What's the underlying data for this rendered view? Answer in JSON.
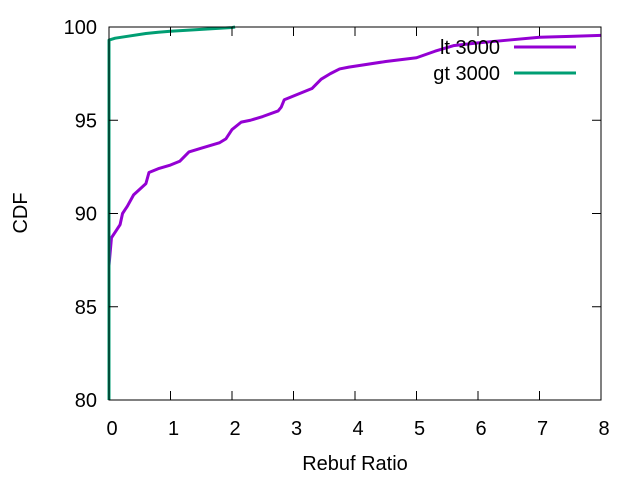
{
  "chart_data": {
    "type": "line",
    "title": "",
    "xlabel": "Rebuf Ratio",
    "ylabel": "CDF",
    "xlim": [
      0,
      8
    ],
    "ylim": [
      80,
      100
    ],
    "xticks": [
      0,
      1,
      2,
      3,
      4,
      5,
      6,
      7,
      8
    ],
    "yticks": [
      80,
      85,
      90,
      95,
      100
    ],
    "grid": false,
    "legend_position": "top-right",
    "series": [
      {
        "name": "lt 3000",
        "color": "#9400d3",
        "points": [
          [
            0,
            80
          ],
          [
            0,
            87.2
          ],
          [
            0.04,
            88.7
          ],
          [
            0.1,
            89.0
          ],
          [
            0.18,
            89.4
          ],
          [
            0.22,
            90.0
          ],
          [
            0.3,
            90.4
          ],
          [
            0.4,
            91.0
          ],
          [
            0.5,
            91.3
          ],
          [
            0.6,
            91.6
          ],
          [
            0.65,
            92.2
          ],
          [
            0.8,
            92.4
          ],
          [
            1.0,
            92.6
          ],
          [
            1.15,
            92.8
          ],
          [
            1.3,
            93.3
          ],
          [
            1.5,
            93.5
          ],
          [
            1.8,
            93.8
          ],
          [
            1.9,
            94.0
          ],
          [
            2.0,
            94.5
          ],
          [
            2.15,
            94.9
          ],
          [
            2.3,
            95.0
          ],
          [
            2.5,
            95.2
          ],
          [
            2.75,
            95.5
          ],
          [
            2.8,
            95.7
          ],
          [
            2.85,
            96.1
          ],
          [
            3.0,
            96.3
          ],
          [
            3.3,
            96.7
          ],
          [
            3.45,
            97.2
          ],
          [
            3.6,
            97.5
          ],
          [
            3.75,
            97.75
          ],
          [
            3.9,
            97.85
          ],
          [
            4.5,
            98.15
          ],
          [
            5.0,
            98.35
          ],
          [
            5.3,
            98.7
          ],
          [
            5.6,
            99.0
          ],
          [
            6.0,
            99.15
          ],
          [
            6.5,
            99.3
          ],
          [
            7.0,
            99.45
          ],
          [
            7.5,
            99.5
          ],
          [
            8.0,
            99.55
          ]
        ]
      },
      {
        "name": "gt 3000",
        "color": "#009e73",
        "points": [
          [
            0,
            80
          ],
          [
            0,
            99.3
          ],
          [
            0.1,
            99.4
          ],
          [
            0.3,
            99.5
          ],
          [
            0.6,
            99.65
          ],
          [
            0.8,
            99.72
          ],
          [
            1.0,
            99.77
          ],
          [
            1.5,
            99.87
          ],
          [
            2.0,
            99.97
          ],
          [
            2.05,
            100
          ]
        ]
      }
    ]
  }
}
